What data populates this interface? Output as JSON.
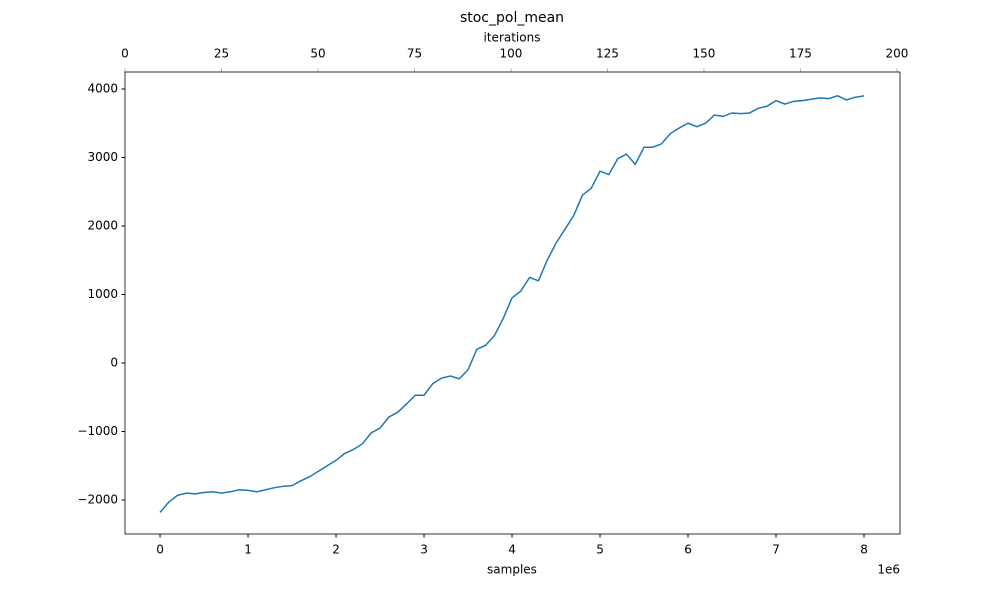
{
  "chart_data": {
    "type": "line",
    "title": "stoc_pol_mean",
    "x_label": "samples",
    "x_offset_label": "1e6",
    "x2_label": "iterations",
    "x": [
      0,
      0.1,
      0.2,
      0.3,
      0.4,
      0.5,
      0.6,
      0.7,
      0.8,
      0.9,
      1.0,
      1.1,
      1.2,
      1.3,
      1.4,
      1.5,
      1.6,
      1.7,
      1.8,
      1.9,
      2.0,
      2.1,
      2.2,
      2.3,
      2.4,
      2.5,
      2.6,
      2.7,
      2.8,
      2.9,
      3.0,
      3.1,
      3.2,
      3.3,
      3.4,
      3.5,
      3.6,
      3.7,
      3.8,
      3.9,
      4.0,
      4.1,
      4.2,
      4.3,
      4.4,
      4.5,
      4.6,
      4.7,
      4.8,
      4.9,
      5.0,
      5.1,
      5.2,
      5.3,
      5.4,
      5.5,
      5.6,
      5.7,
      5.8,
      5.9,
      6.0,
      6.1,
      6.2,
      6.3,
      6.4,
      6.5,
      6.6,
      6.7,
      6.8,
      6.9,
      7.0,
      7.1,
      7.2,
      7.3,
      7.4,
      7.5,
      7.6,
      7.7,
      7.8,
      7.9,
      8.0
    ],
    "values": [
      -2180,
      -2030,
      -1930,
      -1900,
      -1910,
      -1890,
      -1880,
      -1900,
      -1880,
      -1850,
      -1860,
      -1880,
      -1850,
      -1820,
      -1800,
      -1790,
      -1720,
      -1660,
      -1580,
      -1500,
      -1420,
      -1320,
      -1260,
      -1180,
      -1020,
      -950,
      -790,
      -720,
      -600,
      -470,
      -470,
      -300,
      -220,
      -190,
      -230,
      -100,
      200,
      260,
      400,
      650,
      950,
      1050,
      1250,
      1200,
      1500,
      1750,
      1950,
      2150,
      2450,
      2550,
      2800,
      2750,
      2980,
      3050,
      2900,
      3150,
      3150,
      3200,
      3350,
      3430,
      3500,
      3450,
      3500,
      3620,
      3600,
      3650,
      3640,
      3650,
      3720,
      3750,
      3830,
      3780,
      3820,
      3830,
      3850,
      3870,
      3860,
      3900,
      3840,
      3880,
      3900
    ],
    "color": "#1f77b4",
    "xlim": [
      -0.398,
      8.409
    ],
    "xticks": [
      0,
      1,
      2,
      3,
      4,
      5,
      6,
      7,
      8
    ],
    "x2lim": [
      0,
      200.8
    ],
    "x2ticks": [
      0,
      25,
      50,
      75,
      100,
      125,
      150,
      175,
      200
    ],
    "x2_color": "#b0b0b0",
    "ylim": [
      -2496,
      4248
    ],
    "yticks": [
      {
        "value": -2000,
        "label": "−2000"
      },
      {
        "value": -1000,
        "label": "−1000"
      },
      0,
      1000,
      2000,
      3000,
      4000
    ]
  }
}
